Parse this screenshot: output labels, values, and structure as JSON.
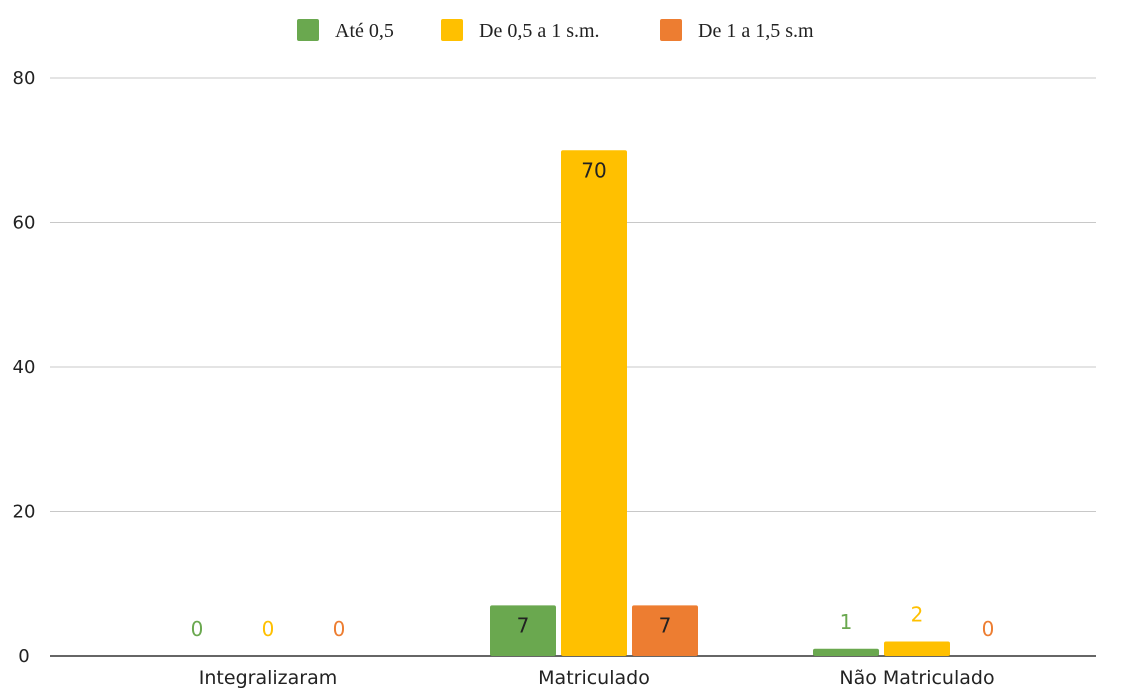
{
  "chart_data": {
    "type": "bar",
    "title": "",
    "xlabel": "",
    "ylabel": "",
    "categories": [
      "Integralizaram",
      "Matriculado",
      "Não Matriculado"
    ],
    "series": [
      {
        "name": "Até 0,5",
        "color": "#6AA84F",
        "values": [
          0,
          7,
          1
        ]
      },
      {
        "name": "De 0,5 a 1 s.m.",
        "color": "#FFC000",
        "values": [
          0,
          70,
          2
        ]
      },
      {
        "name": "De 1 a 1,5 s.m",
        "color": "#ED7D31",
        "values": [
          0,
          7,
          0
        ]
      }
    ],
    "ylim": [
      0,
      80
    ],
    "yticks": [
      "0",
      "20",
      "40",
      "60",
      "80"
    ],
    "grid": true,
    "legend_position": "top-center",
    "data_labels": true
  }
}
